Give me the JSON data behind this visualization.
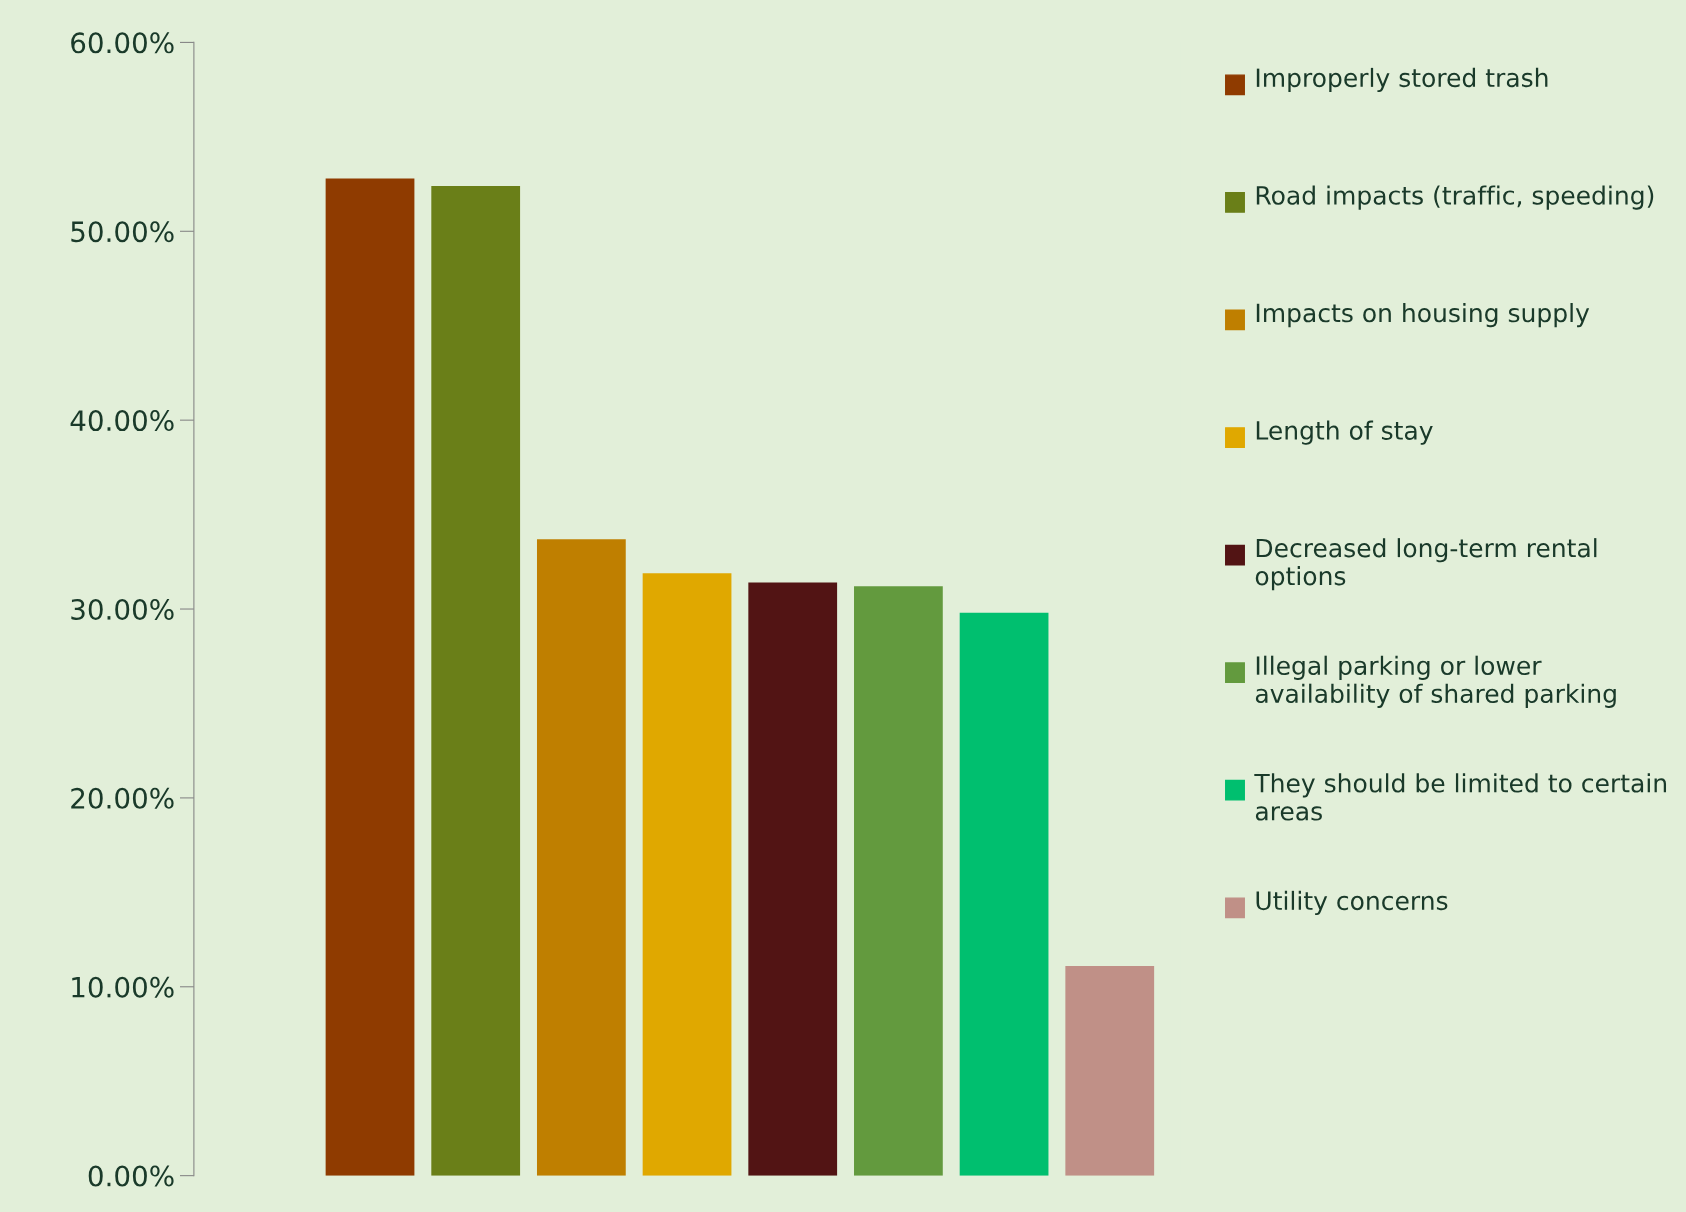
{
  "chart_data": {
    "type": "bar",
    "categories": [
      null
    ],
    "series": [
      {
        "name": "Improperly stored trash",
        "color": "#8f3b00",
        "values": [
          52.8
        ]
      },
      {
        "name": "Road impacts (traffic, speeding)",
        "color": "#6a7f18",
        "values": [
          52.4
        ]
      },
      {
        "name": "Impacts on housing supply",
        "color": "#bf7f00",
        "values": [
          33.7
        ]
      },
      {
        "name": "Length of stay",
        "color": "#e0a800",
        "values": [
          31.9
        ]
      },
      {
        "name": "Decreased long-term rental options",
        "color": "#521414",
        "values": [
          31.4
        ]
      },
      {
        "name": "Illegal parking or lower availability of shared parking",
        "color": "#639a3e",
        "values": [
          31.2
        ]
      },
      {
        "name": "They should be limited to certain areas",
        "color": "#00bf6f",
        "values": [
          29.8
        ]
      },
      {
        "name": "Utility concerns",
        "color": "#c09087",
        "values": [
          11.1
        ]
      }
    ],
    "ylim": [
      0,
      60
    ],
    "yticks": [
      {
        "value": 0,
        "label": "0.00%"
      },
      {
        "value": 10,
        "label": "10.00%"
      },
      {
        "value": 20,
        "label": "20.00%"
      },
      {
        "value": 30,
        "label": "30.00%"
      },
      {
        "value": 40,
        "label": "40.00%"
      },
      {
        "value": 50,
        "label": "50.00%"
      },
      {
        "value": 60,
        "label": "60.00%"
      }
    ],
    "tick_labels": "y",
    "grid": false,
    "legend": "right"
  }
}
